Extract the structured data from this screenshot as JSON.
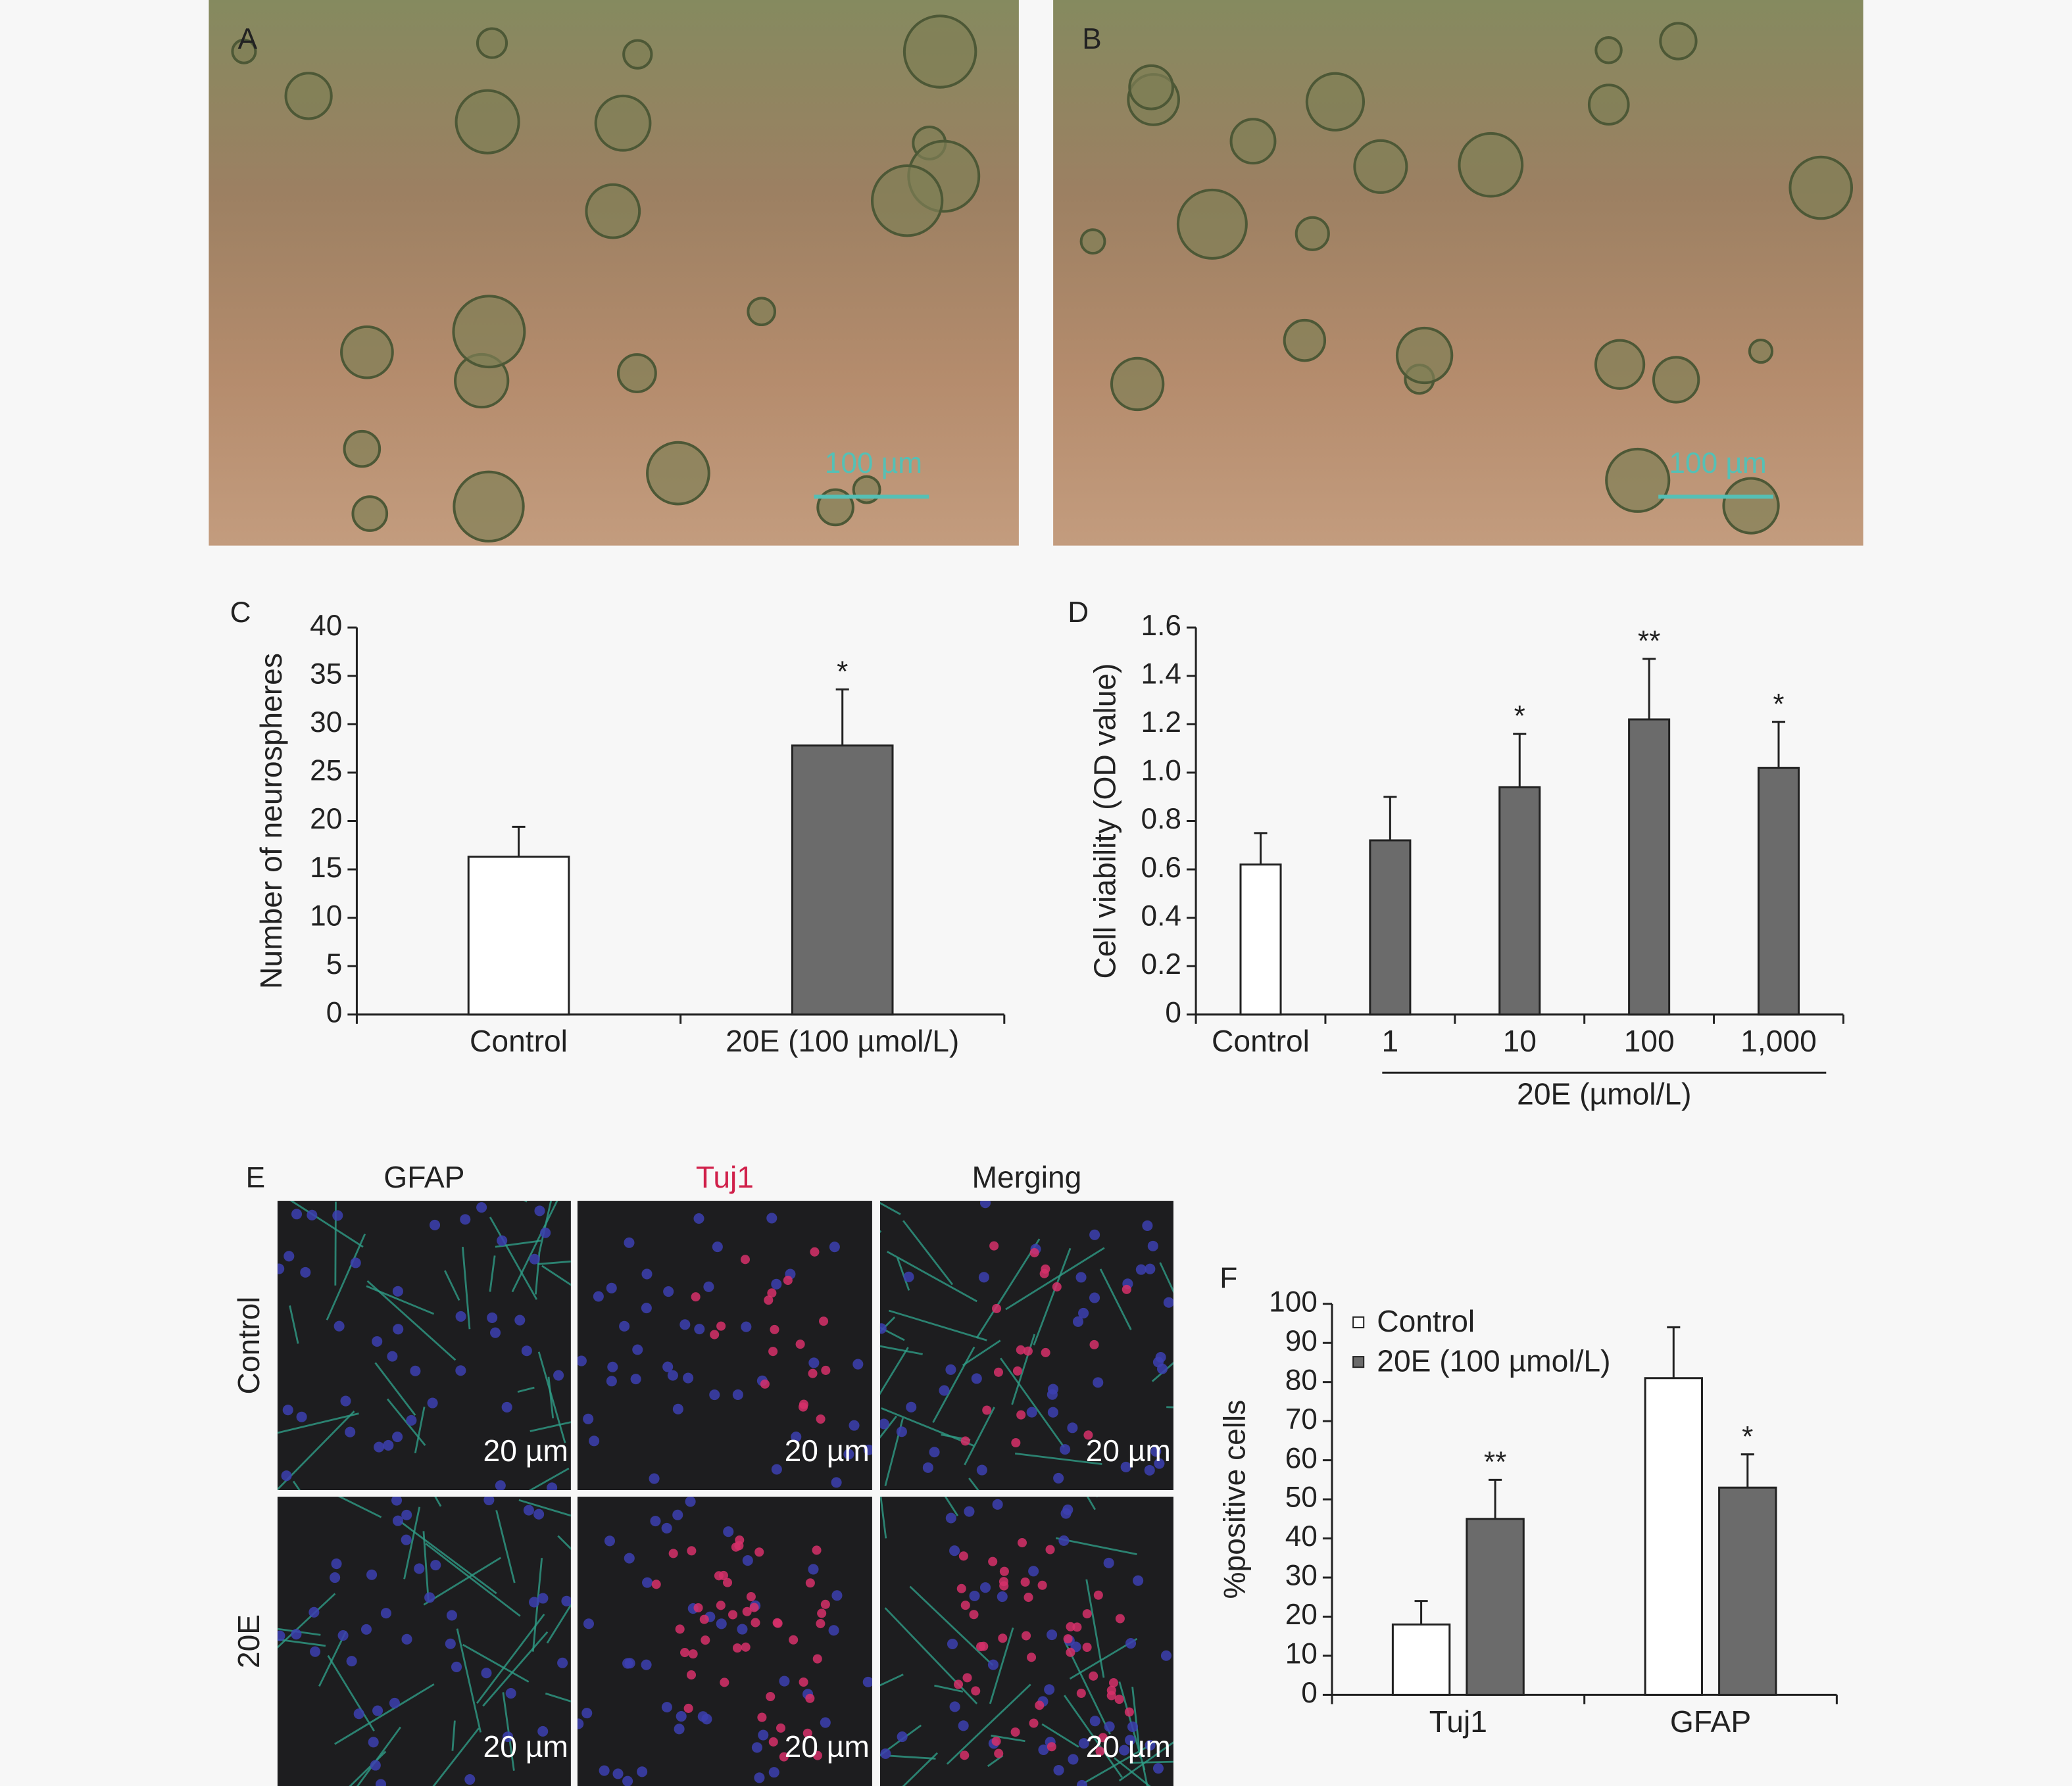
{
  "panels": {
    "A": {
      "label": "A",
      "scale_bar": "100 µm"
    },
    "B": {
      "label": "B",
      "scale_bar": "100 µm"
    },
    "E": {
      "label": "E",
      "columns": [
        "GFAP",
        "Tuj1",
        "Merging"
      ],
      "rows": [
        "Control",
        "20E"
      ],
      "scale_bars": [
        [
          "20 µm",
          "20 µm",
          "20 µm"
        ],
        [
          "20 µm",
          "20 µm",
          "20 µm"
        ]
      ]
    }
  },
  "chart_data": [
    {
      "type": "bar",
      "panel_label": "C",
      "ylabel": "Number of neurospheres",
      "categories": [
        "Control",
        "20E (100 µmol/L)"
      ],
      "values": [
        16.3,
        27.8
      ],
      "errors": [
        3.1,
        5.8
      ],
      "colors": [
        "#ffffff",
        "#6b6b6b"
      ],
      "significance": [
        null,
        "*"
      ],
      "ylim": [
        0,
        40
      ],
      "yticks": [
        0,
        5,
        10,
        15,
        20,
        25,
        30,
        35,
        40
      ]
    },
    {
      "type": "bar",
      "panel_label": "D",
      "ylabel": "Cell viability (OD value)",
      "xlabel": "20E (µmol/L)",
      "categories": [
        "Control",
        "1",
        "10",
        "100",
        "1,000"
      ],
      "values": [
        0.62,
        0.72,
        0.94,
        1.22,
        1.02
      ],
      "errors": [
        0.13,
        0.18,
        0.22,
        0.25,
        0.19
      ],
      "colors": [
        "#ffffff",
        "#6b6b6b",
        "#6b6b6b",
        "#6b6b6b",
        "#6b6b6b"
      ],
      "significance": [
        null,
        null,
        "*",
        "**",
        "*"
      ],
      "ylim": [
        0,
        1.6
      ],
      "yticks": [
        0,
        0.2,
        0.4,
        0.6,
        0.8,
        {
          "value": 1,
          "label": "1.0"
        },
        1.2,
        1.4,
        1.6
      ]
    },
    {
      "type": "grouped_bar",
      "panel_label": "F",
      "ylabel": "%positive cells",
      "legend": "upper left",
      "categories": [
        "Tuj1",
        "GFAP"
      ],
      "series": [
        {
          "name": "Control",
          "color": "#ffffff",
          "values": [
            18,
            81
          ],
          "errors": [
            6,
            13
          ],
          "significance": [
            null,
            null
          ]
        },
        {
          "name": "20E (100 µmol/L)",
          "color": "#6b6b6b",
          "values": [
            45,
            53
          ],
          "errors": [
            10,
            8.5
          ],
          "significance": [
            "**",
            "*"
          ]
        }
      ],
      "ylim": [
        0,
        100
      ],
      "yticks": [
        0,
        10,
        20,
        30,
        40,
        50,
        60,
        70,
        80,
        90,
        100
      ]
    }
  ]
}
